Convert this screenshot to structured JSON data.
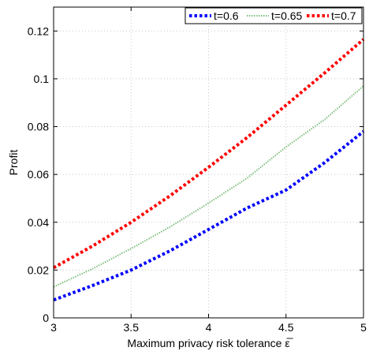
{
  "chart_data": {
    "type": "line",
    "xlabel": "Maximum privacy risk tolerance ε̅",
    "ylabel": "Profit",
    "xlim": [
      3,
      5
    ],
    "ylim": [
      0,
      0.13
    ],
    "xticks": [
      3,
      3.5,
      4,
      4.5,
      5
    ],
    "xtick_labels": [
      "3",
      "3.5",
      "4",
      "4.5",
      "5"
    ],
    "yticks": [
      0,
      0.02,
      0.04,
      0.06,
      0.08,
      0.1,
      0.12
    ],
    "ytick_labels": [
      "0",
      "0.02",
      "0.04",
      "0.06",
      "0.08",
      "0.1",
      "0.12"
    ],
    "grid": true,
    "legend_position": "top-right",
    "x": [
      3.0,
      3.25,
      3.5,
      3.75,
      4.0,
      4.25,
      4.5,
      4.75,
      5.0
    ],
    "series": [
      {
        "name": "t=0.6",
        "color": "#0000ff",
        "style": "dotted-thick",
        "values": [
          0.0075,
          0.0135,
          0.02,
          0.028,
          0.037,
          0.046,
          0.0535,
          0.065,
          0.078
        ]
      },
      {
        "name": "t=0.65",
        "color": "#7fbf7f",
        "style": "dotted-thin",
        "values": [
          0.013,
          0.0205,
          0.029,
          0.038,
          0.048,
          0.0585,
          0.0715,
          0.083,
          0.097
        ]
      },
      {
        "name": "t=0.7",
        "color": "#ff0000",
        "style": "dotted-thick",
        "values": [
          0.021,
          0.03,
          0.04,
          0.051,
          0.063,
          0.0755,
          0.089,
          0.1025,
          0.1165
        ]
      }
    ]
  }
}
